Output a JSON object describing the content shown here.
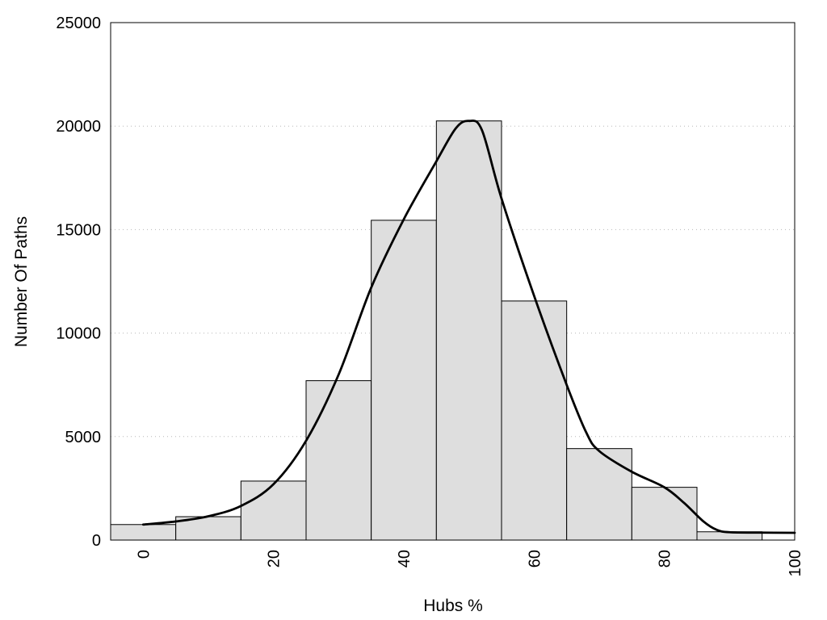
{
  "chart_data": {
    "type": "bar",
    "title": "",
    "xlabel": "Hubs %",
    "ylabel": "Number Of Paths",
    "xlim": [
      -5,
      100
    ],
    "ylim": [
      0,
      25000
    ],
    "x_ticks": [
      0,
      20,
      40,
      60,
      80,
      100
    ],
    "y_ticks": [
      0,
      5000,
      10000,
      15000,
      20000,
      25000
    ],
    "grid": "horizontal dotted",
    "bar_color": "#dedede",
    "bin_width": 10,
    "bins": [
      {
        "x": 0,
        "value": 750
      },
      {
        "x": 10,
        "value": 1130
      },
      {
        "x": 20,
        "value": 2850
      },
      {
        "x": 30,
        "value": 7700
      },
      {
        "x": 40,
        "value": 15450
      },
      {
        "x": 50,
        "value": 20250
      },
      {
        "x": 60,
        "value": 11550
      },
      {
        "x": 70,
        "value": 4420
      },
      {
        "x": 80,
        "value": 2550
      },
      {
        "x": 90,
        "value": 400
      }
    ],
    "curve": [
      [
        0,
        750
      ],
      [
        5,
        900
      ],
      [
        10,
        1150
      ],
      [
        15,
        1650
      ],
      [
        20,
        2700
      ],
      [
        25,
        4800
      ],
      [
        30,
        8000
      ],
      [
        35,
        12200
      ],
      [
        40,
        15500
      ],
      [
        45,
        18300
      ],
      [
        48,
        19900
      ],
      [
        50,
        20250
      ],
      [
        52,
        19800
      ],
      [
        55,
        16500
      ],
      [
        60,
        11800
      ],
      [
        65,
        7500
      ],
      [
        68,
        5200
      ],
      [
        70,
        4300
      ],
      [
        75,
        3300
      ],
      [
        80,
        2550
      ],
      [
        83,
        1800
      ],
      [
        86,
        900
      ],
      [
        88,
        500
      ],
      [
        90,
        380
      ],
      [
        95,
        360
      ],
      [
        100,
        350
      ]
    ]
  }
}
